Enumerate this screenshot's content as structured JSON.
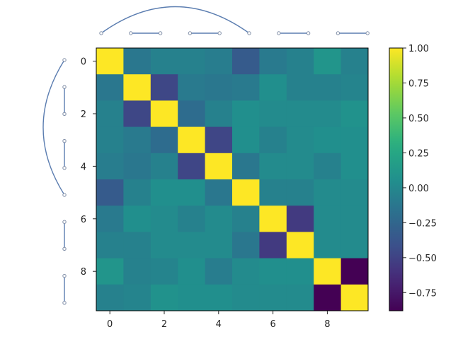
{
  "chart_data": {
    "type": "heatmap",
    "title": "",
    "xlabel": "",
    "ylabel": "",
    "x_ticks": [
      0,
      2,
      4,
      6,
      8
    ],
    "y_ticks": [
      0,
      2,
      4,
      6,
      8
    ],
    "xlim": [
      -0.5,
      9.5
    ],
    "ylim": [
      9.5,
      -0.5
    ],
    "colormap": "viridis",
    "color_range": [
      -0.88,
      1.0
    ],
    "colorbar_ticks": [
      1.0,
      0.75,
      0.5,
      0.25,
      0.0,
      -0.25,
      -0.5,
      -0.75
    ],
    "colorbar_tick_labels": [
      "1.00",
      "0.75",
      "0.50",
      "0.25",
      "0.00",
      "−0.25",
      "−0.50",
      "−0.75"
    ],
    "matrix": [
      [
        1.0,
        -0.12,
        -0.05,
        -0.05,
        -0.08,
        -0.33,
        -0.1,
        -0.05,
        0.1,
        -0.05
      ],
      [
        -0.12,
        1.0,
        -0.47,
        -0.1,
        -0.12,
        -0.1,
        0.05,
        -0.05,
        -0.05,
        -0.03
      ],
      [
        -0.05,
        -0.47,
        1.0,
        -0.2,
        -0.05,
        0.05,
        0.02,
        0.02,
        0.02,
        0.08
      ],
      [
        -0.05,
        -0.1,
        -0.2,
        1.0,
        -0.48,
        0.05,
        -0.05,
        0.02,
        0.05,
        0.05
      ],
      [
        -0.08,
        -0.12,
        -0.05,
        -0.48,
        1.0,
        -0.12,
        0.02,
        0.02,
        -0.05,
        0.05
      ],
      [
        -0.33,
        -0.05,
        0.05,
        0.05,
        -0.12,
        1.0,
        -0.05,
        -0.05,
        0.02,
        0.02
      ],
      [
        -0.1,
        0.05,
        0.02,
        -0.05,
        0.02,
        -0.05,
        1.0,
        -0.55,
        0.02,
        0.02
      ],
      [
        -0.05,
        -0.05,
        0.02,
        0.02,
        0.02,
        -0.12,
        -0.55,
        1.0,
        0.02,
        0.02
      ],
      [
        0.1,
        -0.05,
        -0.03,
        0.05,
        -0.08,
        0.02,
        0.05,
        0.05,
        1.0,
        -0.88
      ],
      [
        -0.05,
        -0.03,
        0.08,
        0.05,
        0.05,
        0.02,
        0.02,
        0.02,
        -0.88,
        1.0
      ]
    ],
    "top_links": [
      [
        0,
        5
      ],
      [
        1,
        2
      ],
      [
        3,
        4
      ],
      [
        6,
        7
      ],
      [
        8,
        9
      ]
    ],
    "left_links": [
      [
        0,
        5
      ],
      [
        1,
        2
      ],
      [
        3,
        4
      ],
      [
        6,
        7
      ],
      [
        8,
        9
      ]
    ]
  }
}
